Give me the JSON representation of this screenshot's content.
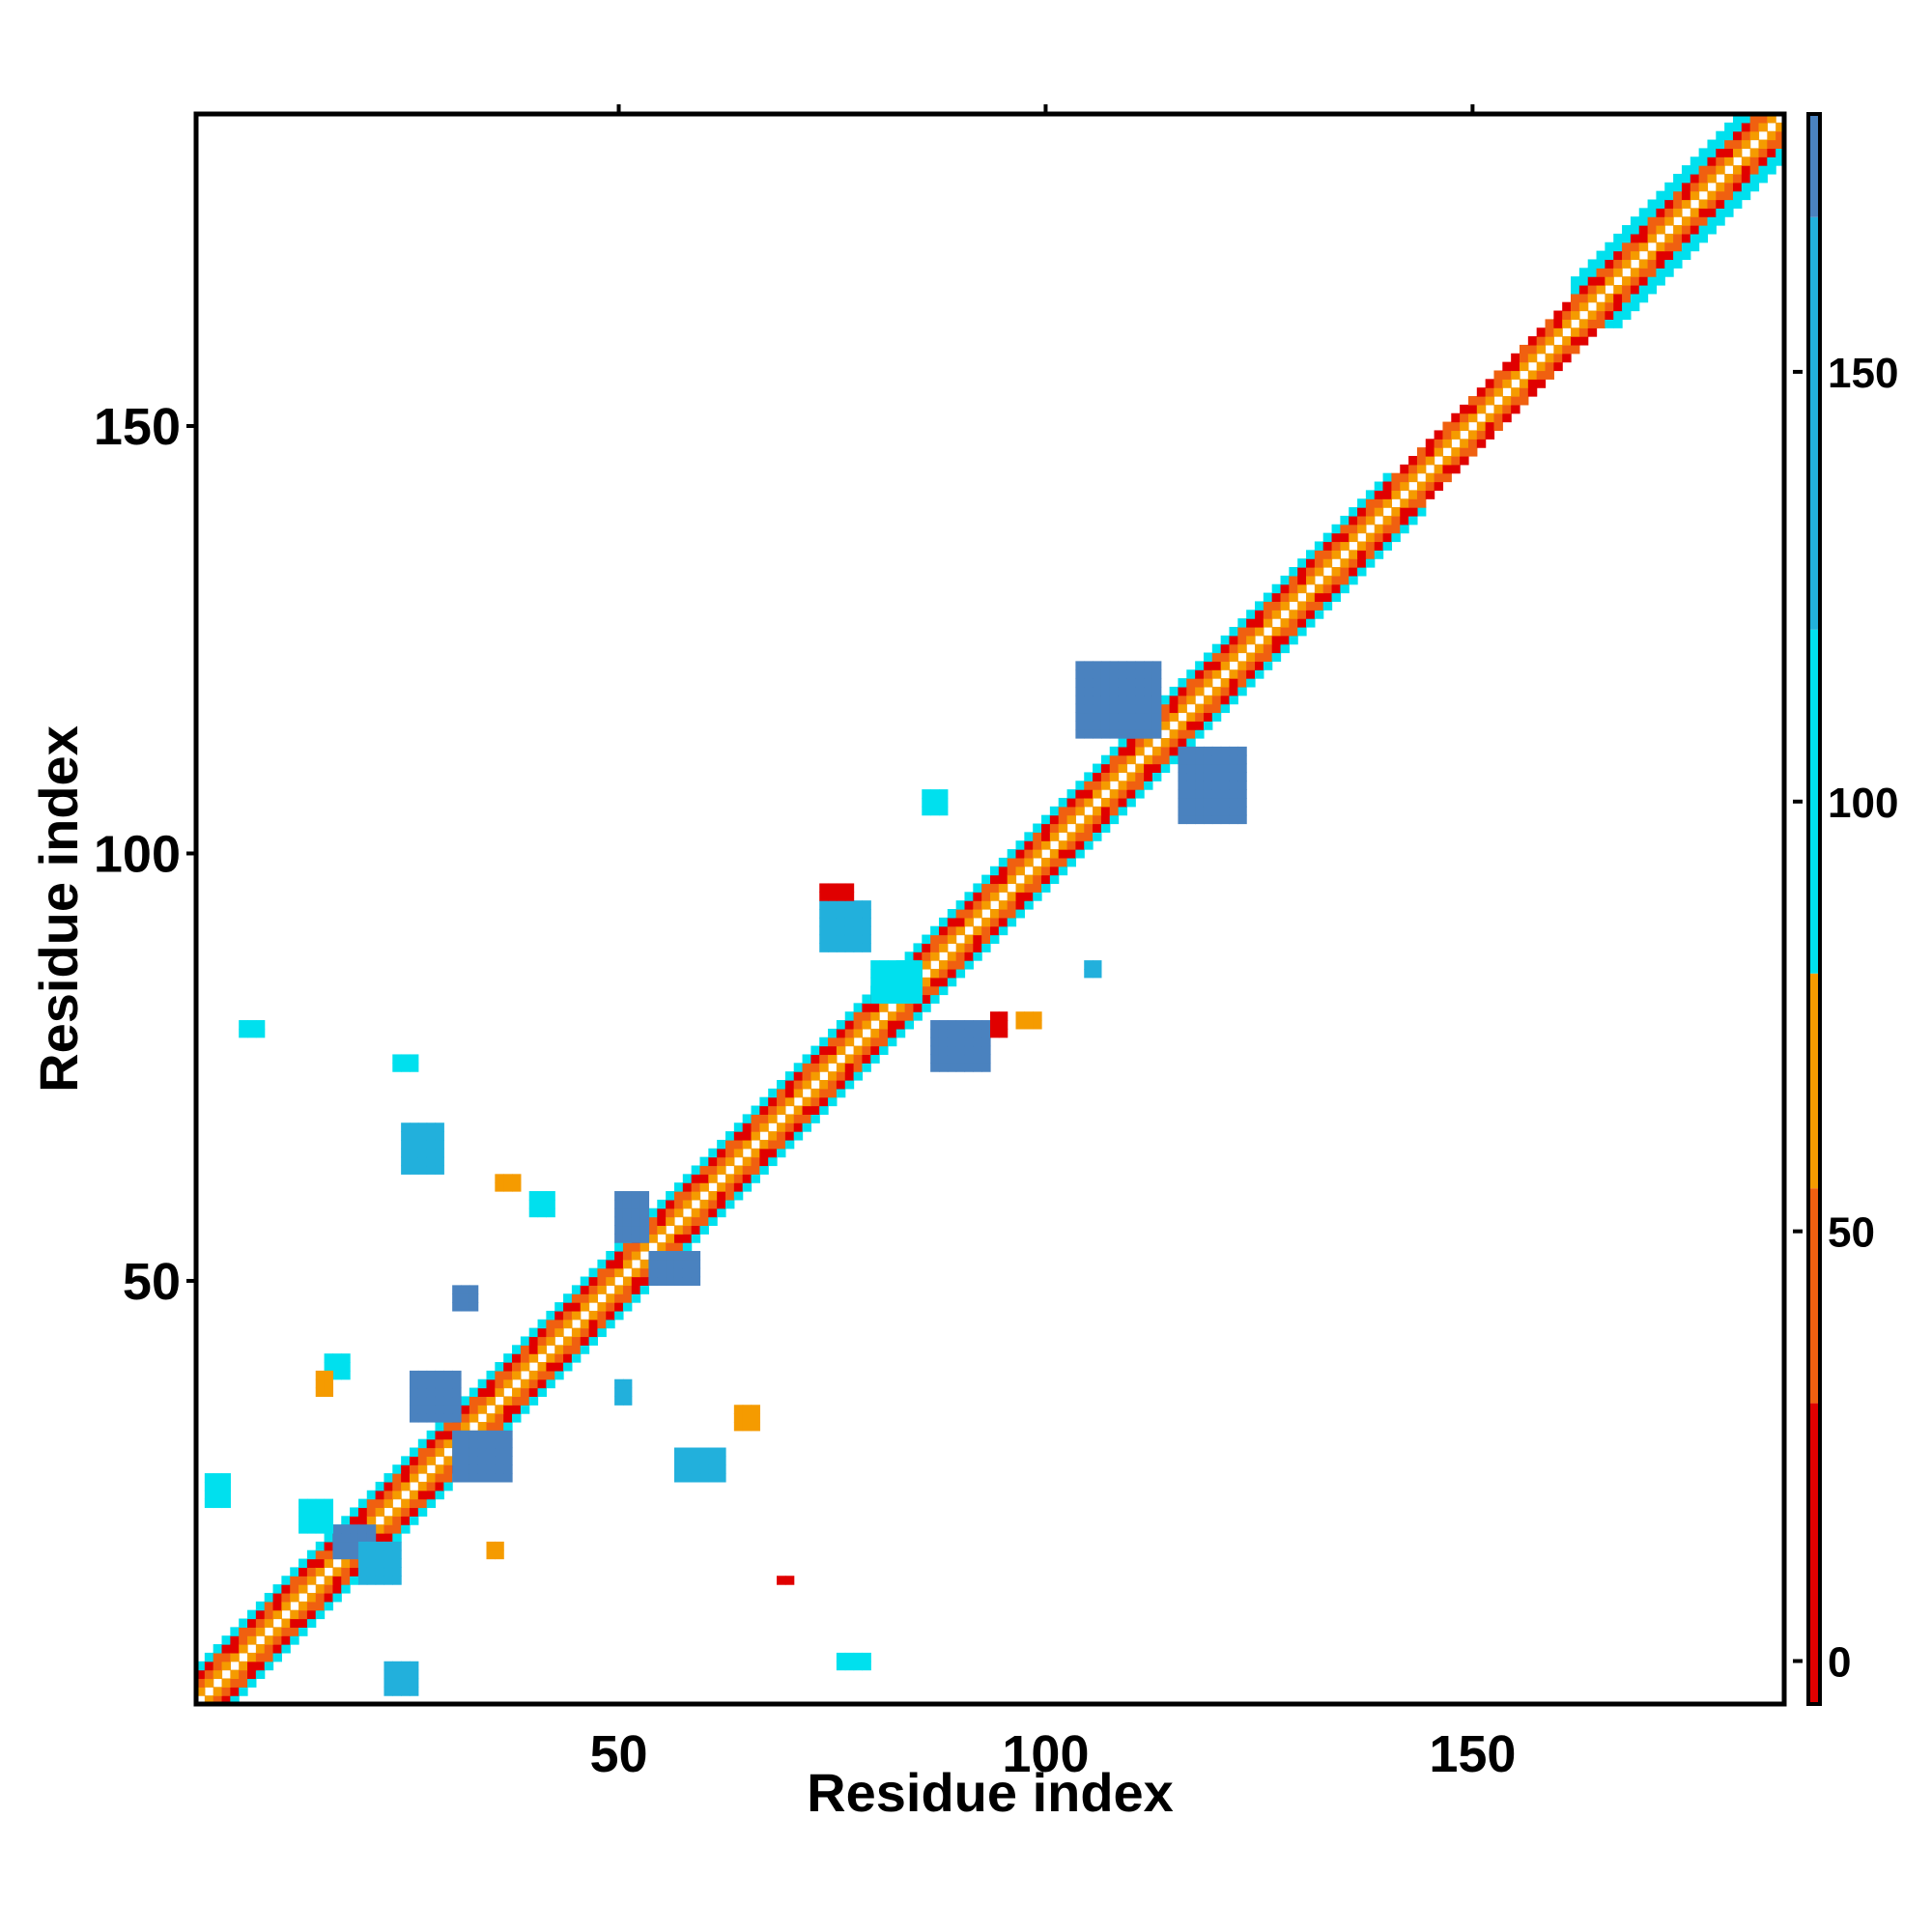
{
  "chart_data": {
    "type": "heatmap",
    "title": "",
    "xlabel": "Residue index",
    "ylabel": "Residue index",
    "xlim": [
      1,
      186
    ],
    "ylim": [
      1,
      186
    ],
    "x_ticks": [
      50,
      100,
      150
    ],
    "y_ticks": [
      50,
      100,
      150
    ],
    "grid": false,
    "legend_position": "right",
    "colorbar": {
      "range": [
        -5,
        180
      ],
      "ticks": [
        0,
        50,
        100,
        150
      ],
      "bands": [
        {
          "from": -5,
          "to": 30,
          "color": "#e00000"
        },
        {
          "from": 30,
          "to": 55,
          "color": "#f06010"
        },
        {
          "from": 55,
          "to": 80,
          "color": "#f59b00"
        },
        {
          "from": 80,
          "to": 120,
          "color": "#00e0ee"
        },
        {
          "from": 120,
          "to": 168,
          "color": "#22b0dc"
        },
        {
          "from": 168,
          "to": 180,
          "color": "#4a82bf"
        }
      ]
    },
    "cell_colors": {
      "d1": "#f59b00",
      "d2": "#f06010",
      "d3": "#e00000",
      "d4": "#00e0ee",
      "cyan": "#00e0ee",
      "sky": "#22b0dc",
      "steel": "#4a82bf",
      "orange": "#f59b00",
      "red": "#e00000"
    },
    "diagonal_band": {
      "segments": [
        {
          "from": 1,
          "to": 140,
          "width": 4
        },
        {
          "from": 140,
          "to": 162,
          "width": 3
        },
        {
          "from": 162,
          "to": 186,
          "width": 5
        }
      ]
    },
    "contact_clusters": [
      {
        "x": [
          2,
          4
        ],
        "y": [
          24,
          27
        ],
        "color": "cyan"
      },
      {
        "x": [
          23,
          26
        ],
        "y": [
          2,
          5
        ],
        "color": "sky"
      },
      {
        "x": [
          17,
          21
        ],
        "y": [
          18,
          21
        ],
        "color": "steel"
      },
      {
        "x": [
          20,
          24
        ],
        "y": [
          15,
          19
        ],
        "color": "sky"
      },
      {
        "x": [
          13,
          16
        ],
        "y": [
          21,
          24
        ],
        "color": "cyan"
      },
      {
        "x": [
          26,
          31
        ],
        "y": [
          34,
          39
        ],
        "color": "steel"
      },
      {
        "x": [
          31,
          37
        ],
        "y": [
          27,
          32
        ],
        "color": "steel"
      },
      {
        "x": [
          25,
          29
        ],
        "y": [
          63,
          68
        ],
        "color": "sky"
      },
      {
        "x": [
          50,
          53
        ],
        "y": [
          55,
          60
        ],
        "color": "steel"
      },
      {
        "x": [
          54,
          59
        ],
        "y": [
          50,
          53
        ],
        "color": "steel"
      },
      {
        "x": [
          57,
          62
        ],
        "y": [
          27,
          30
        ],
        "color": "sky"
      },
      {
        "x": [
          74,
          79
        ],
        "y": [
          89,
          94
        ],
        "color": "sky"
      },
      {
        "x": [
          80,
          85
        ],
        "y": [
          83,
          87
        ],
        "color": "cyan"
      },
      {
        "x": [
          87,
          93
        ],
        "y": [
          75,
          80
        ],
        "color": "steel"
      },
      {
        "x": [
          104,
          113
        ],
        "y": [
          114,
          122
        ],
        "color": "steel"
      },
      {
        "x": [
          116,
          123
        ],
        "y": [
          104,
          112
        ],
        "color": "steel"
      },
      {
        "x": [
          6,
          8
        ],
        "y": [
          79,
          80
        ],
        "color": "cyan"
      },
      {
        "x": [
          76,
          79
        ],
        "y": [
          5,
          6
        ],
        "color": "cyan"
      },
      {
        "x": [
          86,
          88
        ],
        "y": [
          105,
          107
        ],
        "color": "cyan"
      },
      {
        "x": [
          105,
          106
        ],
        "y": [
          86,
          87
        ],
        "color": "sky"
      },
      {
        "x": [
          74,
          77
        ],
        "y": [
          95,
          96
        ],
        "color": "red"
      },
      {
        "x": [
          94,
          95
        ],
        "y": [
          79,
          81
        ],
        "color": "red"
      },
      {
        "x": [
          97,
          99
        ],
        "y": [
          80,
          81
        ],
        "color": "orange"
      },
      {
        "x": [
          36,
          38
        ],
        "y": [
          61,
          62
        ],
        "color": "orange"
      },
      {
        "x": [
          35,
          36
        ],
        "y": [
          18,
          19
        ],
        "color": "orange"
      },
      {
        "x": [
          40,
          42
        ],
        "y": [
          58,
          60
        ],
        "color": "cyan"
      },
      {
        "x": [
          50,
          51
        ],
        "y": [
          36,
          38
        ],
        "color": "sky"
      },
      {
        "x": [
          64,
          66
        ],
        "y": [
          33,
          35
        ],
        "color": "orange"
      },
      {
        "x": [
          69,
          70
        ],
        "y": [
          15,
          15
        ],
        "color": "red"
      },
      {
        "x": [
          16,
          18
        ],
        "y": [
          39,
          41
        ],
        "color": "cyan"
      },
      {
        "x": [
          24,
          26
        ],
        "y": [
          75,
          76
        ],
        "color": "cyan"
      },
      {
        "x": [
          31,
          33
        ],
        "y": [
          47,
          49
        ],
        "color": "steel"
      },
      {
        "x": [
          15,
          16
        ],
        "y": [
          37,
          39
        ],
        "color": "orange"
      }
    ]
  }
}
